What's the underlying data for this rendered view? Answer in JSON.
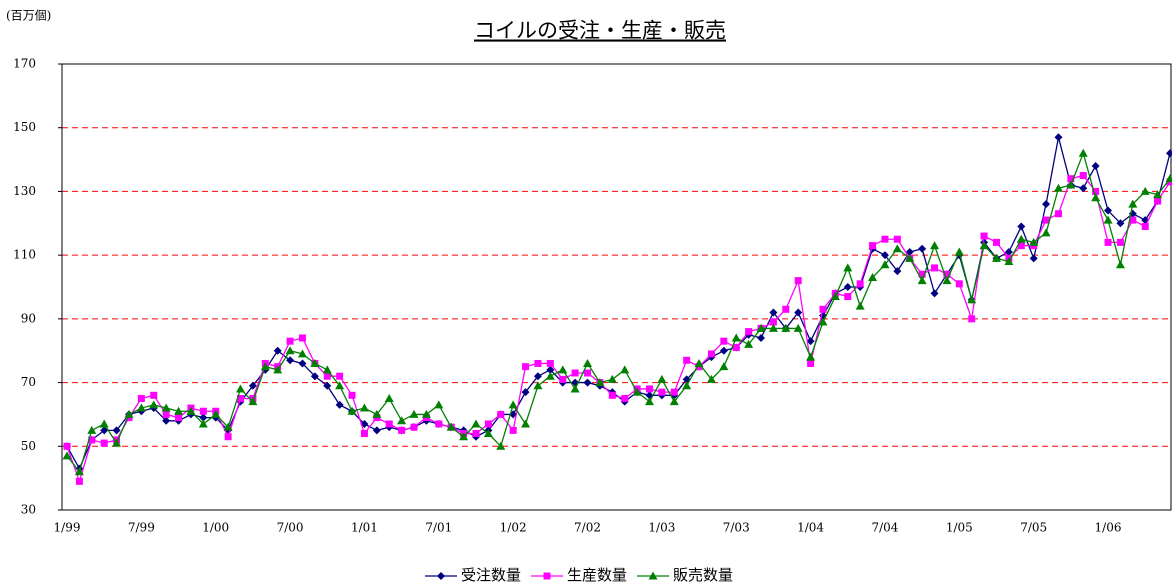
{
  "chart_data": {
    "type": "line",
    "title": "コイルの受注・生産・販売",
    "y_unit_label": "(百万個)",
    "categories": [
      "1/99",
      null,
      null,
      null,
      null,
      null,
      "7/99",
      null,
      null,
      null,
      null,
      null,
      "1/00",
      null,
      null,
      null,
      null,
      null,
      "7/00",
      null,
      null,
      null,
      null,
      null,
      "1/01",
      null,
      null,
      null,
      null,
      null,
      "7/01",
      null,
      null,
      null,
      null,
      null,
      "1/02",
      null,
      null,
      null,
      null,
      null,
      "7/02",
      null,
      null,
      null,
      null,
      null,
      "1/03",
      null,
      null,
      null,
      null,
      null,
      "7/03",
      null,
      null,
      null,
      null,
      null,
      "1/04",
      null,
      null,
      null,
      null,
      null,
      "7/04",
      null,
      null,
      null,
      null,
      null,
      "1/05",
      null,
      null,
      null,
      null,
      null,
      "7/05",
      null,
      null,
      null,
      null,
      null,
      "1/06",
      null,
      null,
      null,
      null,
      null
    ],
    "series": [
      {
        "name": "受注数量",
        "color": "#000080",
        "marker": "diamond",
        "values": [
          50,
          43,
          52,
          55,
          55,
          60,
          61,
          62,
          58,
          58,
          60,
          59,
          59,
          55,
          64,
          69,
          74,
          80,
          77,
          76,
          72,
          69,
          63,
          61,
          57,
          55,
          56,
          55,
          56,
          58,
          57,
          56,
          55,
          53,
          55,
          60,
          60,
          67,
          72,
          74,
          70,
          70,
          70,
          69,
          67,
          64,
          67,
          66,
          66,
          66,
          71,
          75,
          78,
          80,
          81,
          85,
          84,
          92,
          87,
          92,
          83,
          91,
          98,
          100,
          100,
          112,
          110,
          105,
          111,
          112,
          98,
          104,
          110,
          96,
          114,
          109,
          111,
          119,
          109,
          126,
          147,
          132,
          131,
          138,
          124,
          120,
          123,
          121,
          127,
          142
        ]
      },
      {
        "name": "生産数量",
        "color": "#ff00ff",
        "marker": "square",
        "values": [
          50,
          39,
          52,
          51,
          52,
          59,
          65,
          66,
          60,
          59,
          62,
          61,
          61,
          53,
          65,
          65,
          76,
          75,
          83,
          84,
          76,
          72,
          72,
          66,
          54,
          59,
          57,
          55,
          56,
          59,
          57,
          56,
          54,
          54,
          57,
          60,
          55,
          75,
          76,
          76,
          71,
          73,
          73,
          70,
          66,
          65,
          68,
          68,
          67,
          67,
          77,
          75,
          79,
          83,
          81,
          86,
          87,
          89,
          93,
          102,
          76,
          93,
          98,
          97,
          101,
          113,
          115,
          115,
          109,
          104,
          106,
          104,
          101,
          90,
          116,
          114,
          109,
          113,
          113,
          121,
          123,
          134,
          135,
          130,
          114,
          114,
          121,
          119,
          127,
          133
        ]
      },
      {
        "name": "販売数量",
        "color": "#008000",
        "marker": "triangle",
        "values": [
          47,
          42,
          55,
          57,
          51,
          60,
          62,
          63,
          62,
          61,
          61,
          57,
          60,
          56,
          68,
          64,
          75,
          74,
          80,
          79,
          76,
          74,
          69,
          61,
          62,
          60,
          65,
          58,
          60,
          60,
          63,
          56,
          53,
          57,
          54,
          50,
          63,
          57,
          69,
          72,
          74,
          68,
          76,
          70,
          71,
          74,
          67,
          64,
          71,
          64,
          69,
          76,
          71,
          75,
          84,
          82,
          87,
          87,
          87,
          87,
          78,
          89,
          97,
          106,
          94,
          103,
          107,
          112,
          109,
          102,
          113,
          102,
          111,
          96,
          113,
          109,
          108,
          115,
          114,
          117,
          131,
          132,
          142,
          128,
          121,
          107,
          126,
          130,
          129,
          134
        ]
      }
    ],
    "ylim": [
      30,
      170
    ],
    "yticks": [
      30,
      50,
      70,
      90,
      110,
      130,
      150,
      170
    ],
    "grid": true,
    "grid_color": "#ff0000",
    "grid_style": "dashed",
    "legend": "bottom"
  }
}
